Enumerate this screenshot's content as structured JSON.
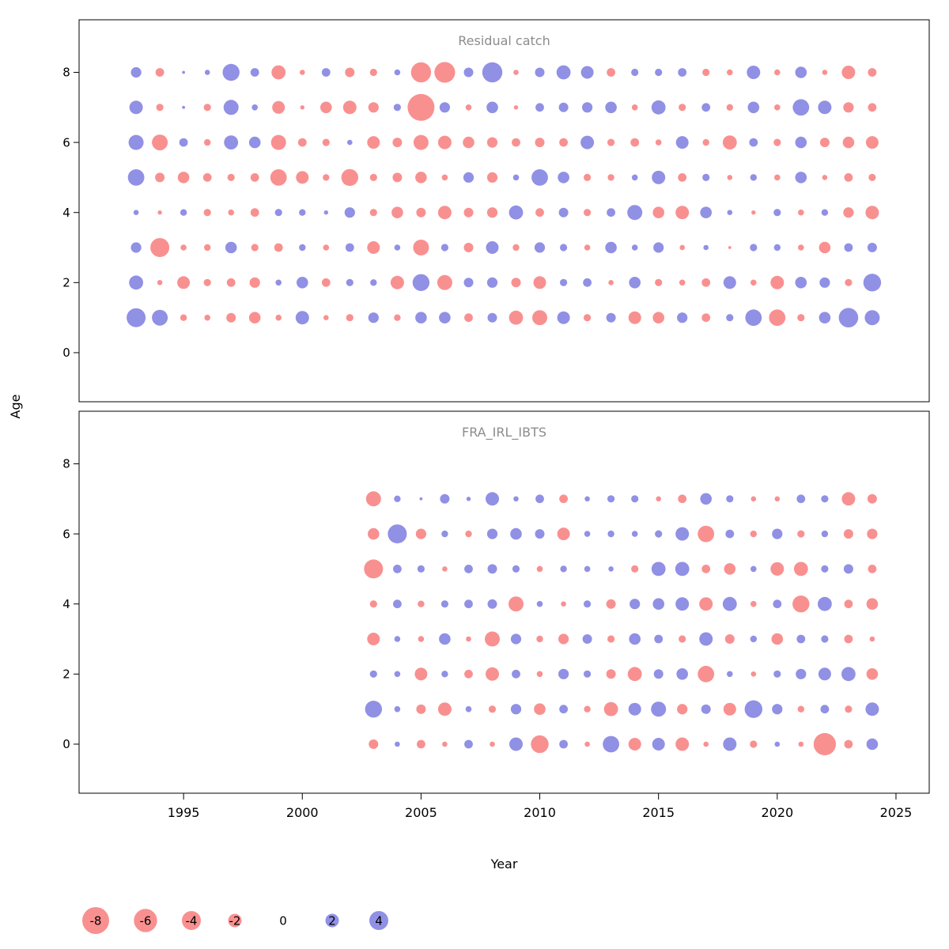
{
  "figure": {
    "xlabel": "Year",
    "ylabel": "Age",
    "colors": {
      "negative": "#F87C7C",
      "positive": "#7C7CE0",
      "title_gray": "#8C8C8C",
      "axis_black": "#000000"
    },
    "legend": {
      "values": [
        -8,
        -6,
        -4,
        -2,
        0,
        2,
        4
      ],
      "position": "bottom-left"
    }
  },
  "chart_data": [
    {
      "type": "bubble",
      "title": "Residual catch",
      "xlabel": "Year",
      "ylabel": "Age",
      "xlim": [
        1990.6,
        2026.4
      ],
      "ylim": [
        -1.4,
        9.5
      ],
      "x_ticks": [
        1995,
        2000,
        2005,
        2010,
        2015,
        2020,
        2025
      ],
      "y_ticks": [
        0,
        2,
        4,
        6,
        8
      ],
      "grid": false,
      "x": [
        1993,
        1994,
        1995,
        1996,
        1997,
        1998,
        1999,
        2000,
        2001,
        2002,
        2003,
        2004,
        2005,
        2006,
        2007,
        2008,
        2009,
        2010,
        2011,
        2012,
        2013,
        2014,
        2015,
        2016,
        2017,
        2018,
        2019,
        2020,
        2021,
        2022,
        2023,
        2024
      ],
      "series": [
        {
          "name": "age-8",
          "age": 8,
          "values": [
            1.2,
            -0.8,
            0.1,
            0.3,
            3.2,
            0.8,
            -2.2,
            -0.3,
            0.8,
            -1.0,
            -0.6,
            0.4,
            -4.5,
            -4.8,
            1.0,
            4.5,
            -0.3,
            1.0,
            2.2,
            1.8,
            -0.8,
            0.6,
            0.6,
            0.8,
            -0.6,
            -0.4,
            2.0,
            -0.4,
            1.5,
            -0.3,
            -2.0,
            -0.8
          ]
        },
        {
          "name": "age-7",
          "age": 7,
          "values": [
            2.0,
            -0.6,
            0.1,
            -0.6,
            2.5,
            0.4,
            -1.8,
            -0.2,
            -1.5,
            -2.0,
            -1.2,
            0.6,
            -8.0,
            1.2,
            -0.4,
            1.5,
            -0.2,
            0.8,
            1.0,
            1.2,
            1.5,
            -0.4,
            2.2,
            -0.6,
            0.8,
            -0.5,
            1.5,
            -0.4,
            3.0,
            2.0,
            -1.2,
            -0.8
          ]
        },
        {
          "name": "age-6",
          "age": 6,
          "values": [
            2.5,
            -2.8,
            0.8,
            -0.5,
            2.2,
            1.5,
            -2.5,
            -0.8,
            -0.6,
            0.3,
            -1.8,
            -1.0,
            -2.5,
            -2.0,
            -1.5,
            -1.2,
            -0.8,
            -1.0,
            -0.8,
            2.0,
            -0.6,
            -0.8,
            -0.4,
            1.8,
            -0.5,
            -2.2,
            0.8,
            -0.6,
            1.5,
            -1.0,
            -1.5,
            -1.8
          ]
        },
        {
          "name": "age-5",
          "age": 5,
          "values": [
            3.0,
            -1.0,
            -1.5,
            -0.8,
            -0.6,
            -0.8,
            -3.0,
            -1.8,
            -0.5,
            -3.2,
            -0.6,
            -1.0,
            -1.5,
            -0.4,
            1.2,
            -1.2,
            0.4,
            3.0,
            1.5,
            -0.6,
            -0.5,
            0.4,
            2.0,
            -0.8,
            0.6,
            -0.3,
            0.5,
            -0.4,
            1.5,
            -0.3,
            -0.8,
            -0.6
          ]
        },
        {
          "name": "age-4",
          "age": 4,
          "values": [
            0.3,
            -0.2,
            0.5,
            -0.6,
            -0.4,
            -0.8,
            0.6,
            0.5,
            0.2,
            1.2,
            -0.6,
            -1.5,
            -1.0,
            -2.0,
            -1.0,
            -1.2,
            2.2,
            -0.8,
            1.0,
            -0.6,
            0.8,
            2.5,
            -1.5,
            -2.0,
            1.5,
            0.3,
            -0.2,
            0.6,
            -0.4,
            0.5,
            -1.2,
            -2.0
          ]
        },
        {
          "name": "age-3",
          "age": 3,
          "values": [
            1.2,
            -4.0,
            -0.4,
            -0.5,
            1.5,
            -0.6,
            -0.8,
            0.5,
            -0.4,
            0.8,
            -1.8,
            0.4,
            -2.8,
            0.6,
            -1.0,
            1.8,
            -0.5,
            1.2,
            0.6,
            -0.4,
            1.5,
            0.4,
            1.2,
            -0.3,
            0.3,
            -0.1,
            0.6,
            0.5,
            -0.4,
            -1.5,
            0.8,
            1.0
          ]
        },
        {
          "name": "age-2",
          "age": 2,
          "values": [
            2.2,
            -0.3,
            -1.8,
            -0.6,
            -0.8,
            -1.2,
            0.4,
            1.5,
            -0.8,
            0.6,
            0.5,
            -2.0,
            3.2,
            -2.5,
            1.0,
            1.2,
            -1.0,
            -1.8,
            0.6,
            0.8,
            -0.3,
            1.5,
            -0.6,
            -0.4,
            -0.8,
            1.8,
            -0.4,
            -2.0,
            1.5,
            1.2,
            -0.6,
            3.5
          ]
        },
        {
          "name": "age-1",
          "age": 1,
          "values": [
            4.0,
            2.8,
            -0.5,
            -0.4,
            -1.0,
            -1.5,
            -0.4,
            2.0,
            -0.3,
            -0.6,
            1.2,
            -0.5,
            1.5,
            1.5,
            -0.8,
            1.0,
            -2.2,
            -2.5,
            1.8,
            -0.6,
            1.0,
            -1.8,
            -1.5,
            1.2,
            -0.8,
            0.6,
            3.0,
            -3.0,
            -0.6,
            1.5,
            4.2,
            2.5
          ]
        }
      ]
    },
    {
      "type": "bubble",
      "title": "FRA_IRL_IBTS",
      "xlabel": "Year",
      "ylabel": "Age",
      "xlim": [
        1990.6,
        2026.4
      ],
      "ylim": [
        -1.4,
        9.5
      ],
      "x_ticks": [
        1995,
        2000,
        2005,
        2010,
        2015,
        2020,
        2025
      ],
      "y_ticks": [
        0,
        2,
        4,
        6,
        8
      ],
      "grid": false,
      "x": [
        2003,
        2004,
        2005,
        2006,
        2007,
        2008,
        2009,
        2010,
        2011,
        2012,
        2013,
        2014,
        2015,
        2016,
        2017,
        2018,
        2019,
        2020,
        2021,
        2022,
        2023,
        2024
      ],
      "series": [
        {
          "name": "age-7",
          "age": 7,
          "values": [
            -2.5,
            0.5,
            0.1,
            1.0,
            0.2,
            2.0,
            0.3,
            0.8,
            -0.8,
            0.3,
            0.6,
            0.6,
            -0.3,
            -0.8,
            1.5,
            0.6,
            -0.3,
            -0.3,
            0.8,
            0.6,
            -2.0,
            -1.0
          ]
        },
        {
          "name": "age-6",
          "age": 6,
          "values": [
            -1.5,
            4.0,
            -1.2,
            0.5,
            -0.5,
            1.2,
            1.5,
            1.0,
            -1.8,
            0.4,
            0.5,
            0.4,
            0.6,
            2.0,
            -3.0,
            0.8,
            -0.5,
            1.2,
            -0.6,
            0.5,
            -1.0,
            -1.2
          ]
        },
        {
          "name": "age-5",
          "age": 5,
          "values": [
            -4.0,
            0.8,
            0.6,
            -0.3,
            0.8,
            1.0,
            0.6,
            -0.4,
            0.5,
            0.4,
            0.3,
            -0.6,
            2.2,
            2.2,
            -0.8,
            -1.5,
            0.4,
            -2.0,
            -2.2,
            0.6,
            1.0,
            -0.8
          ]
        },
        {
          "name": "age-4",
          "age": 4,
          "values": [
            -0.6,
            0.8,
            -0.5,
            0.6,
            0.8,
            1.0,
            -2.5,
            0.4,
            -0.3,
            0.6,
            -1.0,
            1.2,
            1.5,
            2.0,
            -2.0,
            2.2,
            -0.4,
            0.8,
            -3.2,
            2.2,
            -0.8,
            -1.5
          ]
        },
        {
          "name": "age-3",
          "age": 3,
          "values": [
            -1.8,
            0.4,
            -0.4,
            1.5,
            -0.3,
            -2.5,
            1.2,
            -0.5,
            -1.2,
            1.0,
            -0.6,
            1.5,
            0.8,
            -0.6,
            2.0,
            -1.0,
            0.5,
            -1.5,
            0.8,
            0.6,
            -0.8,
            -0.3
          ]
        },
        {
          "name": "age-2",
          "age": 2,
          "values": [
            0.6,
            0.4,
            -1.8,
            0.5,
            -0.8,
            -2.0,
            0.8,
            -0.4,
            1.2,
            0.6,
            -1.0,
            -2.2,
            1.0,
            1.5,
            -3.0,
            0.4,
            -0.3,
            0.6,
            1.2,
            1.8,
            2.2,
            -1.5
          ]
        },
        {
          "name": "age-1",
          "age": 1,
          "values": [
            3.2,
            0.4,
            -1.0,
            -2.0,
            0.4,
            -0.6,
            1.2,
            -1.5,
            0.8,
            -0.5,
            -2.2,
            1.8,
            2.5,
            -1.2,
            1.0,
            -1.8,
            3.5,
            1.2,
            -0.5,
            0.8,
            -0.6,
            2.0
          ]
        },
        {
          "name": "age-0",
          "age": 0,
          "values": [
            -1.0,
            0.3,
            -0.8,
            -0.3,
            0.8,
            -0.3,
            2.0,
            -3.5,
            0.8,
            -0.3,
            3.0,
            -1.8,
            1.8,
            -2.0,
            -0.3,
            2.0,
            -0.6,
            0.3,
            -0.3,
            -5.5,
            -0.8,
            1.5
          ]
        }
      ]
    }
  ]
}
